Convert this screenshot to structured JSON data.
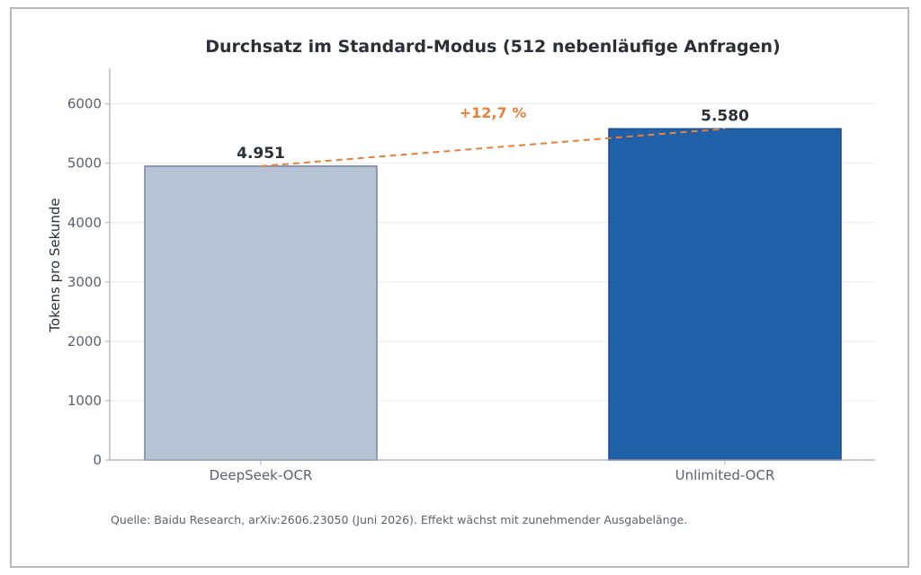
{
  "chart_data": {
    "type": "bar",
    "title": "Durchsatz im Standard-Modus (512 nebenläufige Anfragen)",
    "ylabel": "Tokens pro Sekunde",
    "xlabel": "",
    "categories": [
      "DeepSeek-OCR",
      "Unlimited-OCR"
    ],
    "values": [
      4951,
      5580
    ],
    "value_labels": [
      "4.951",
      "5.580"
    ],
    "bar_colors": [
      "#b6c3d4",
      "#2060a8"
    ],
    "bar_edge_colors": [
      "#7d8aa5",
      "#184f8f"
    ],
    "ylim": [
      0,
      6600
    ],
    "yticks": [
      0,
      1000,
      2000,
      3000,
      4000,
      5000,
      6000
    ],
    "grid": true,
    "legend": "none",
    "annotation": {
      "text": "+12,7 %",
      "color": "#ea8038",
      "style": "dashed",
      "connects": [
        "DeepSeek-OCR",
        "Unlimited-OCR"
      ]
    },
    "caption": "Quelle: Baidu Research, arXiv:2606.23050 (Juni 2026). Effekt wächst mit zunehmender Ausgabelänge."
  }
}
